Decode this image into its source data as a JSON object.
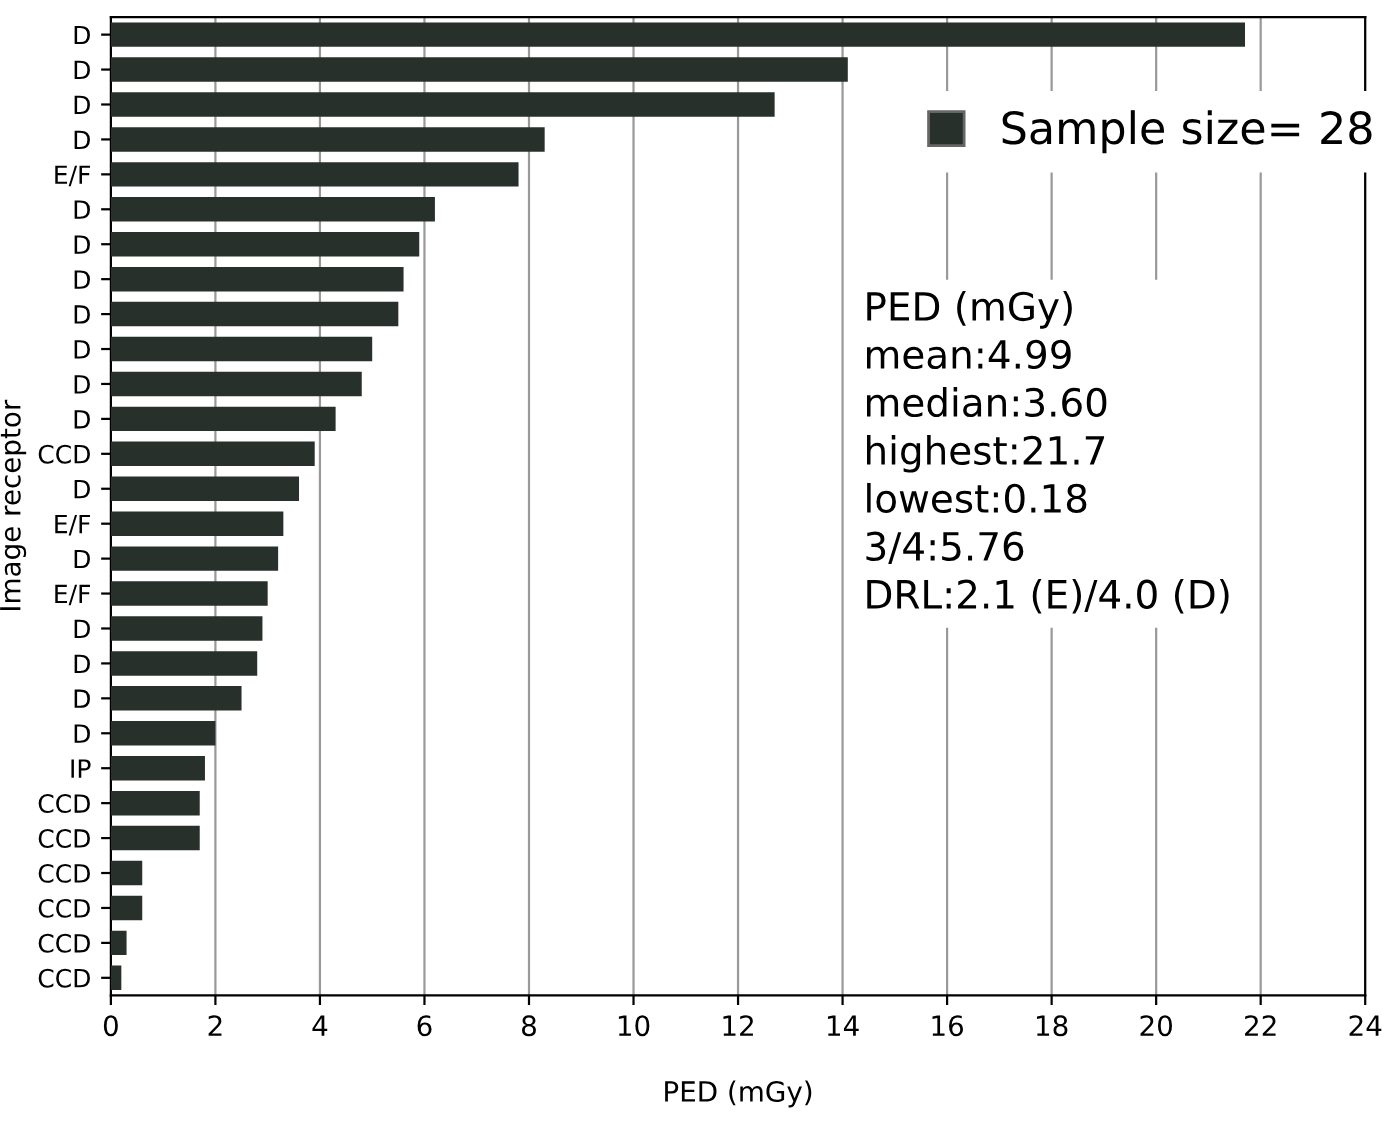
{
  "chart_data": {
    "type": "bar",
    "orientation": "horizontal",
    "xlabel": "PED (mGy)",
    "ylabel": "Image receptor",
    "categories": [
      "D",
      "D",
      "D",
      "D",
      "E/F",
      "D",
      "D",
      "D",
      "D",
      "D",
      "D",
      "D",
      "CCD",
      "D",
      "E/F",
      "D",
      "E/F",
      "D",
      "D",
      "D",
      "D",
      "IP",
      "CCD",
      "CCD",
      "CCD",
      "CCD",
      "CCD",
      "CCD"
    ],
    "series": [
      {
        "name": "Sample size= 28",
        "color": "#27302a",
        "values": [
          21.7,
          14.1,
          12.7,
          8.3,
          7.8,
          6.2,
          5.9,
          5.6,
          5.5,
          5.0,
          4.8,
          4.3,
          3.9,
          3.6,
          3.3,
          3.2,
          3.0,
          2.9,
          2.8,
          2.5,
          2.0,
          1.8,
          1.7,
          1.7,
          0.6,
          0.6,
          0.3,
          0.2
        ]
      }
    ],
    "xlim": [
      0,
      24
    ],
    "xticks": [
      0,
      2,
      4,
      6,
      8,
      10,
      12,
      14,
      16,
      18,
      20,
      22,
      24
    ],
    "grid": "x",
    "legend": "right",
    "annotations": [
      "PED (mGy)",
      "mean:4.99",
      "median:3.60",
      "highest:21.7",
      "lowest:0.18",
      "3/4:5.76",
      "DRL:2.1 (E)/4.0 (D)"
    ]
  }
}
